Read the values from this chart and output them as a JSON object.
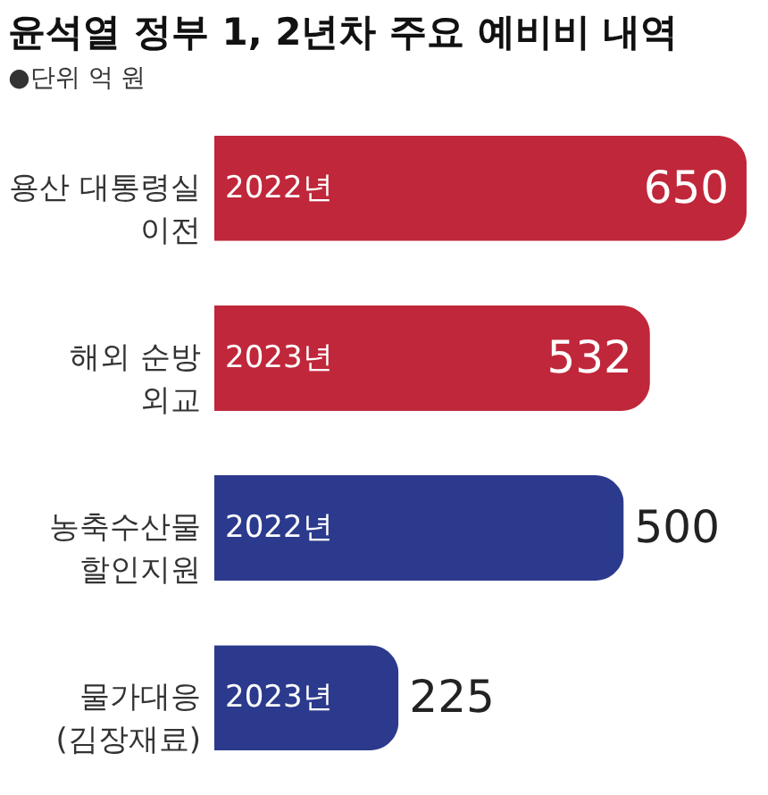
{
  "chart_data": {
    "type": "bar",
    "orientation": "horizontal",
    "title": "윤석열 정부 1, 2년차 주요 예비비 내역",
    "subtitle": "●단위 억 원",
    "categories": [
      "용산 대통령실\n이전",
      "해외 순방\n외교",
      "농축수산물\n할인지원",
      "물가대응\n(김장재료)"
    ],
    "values": [
      650,
      532,
      500,
      225
    ],
    "colors": [
      "#c0273a",
      "#c0273a",
      "#2b3a8c",
      "#2b3a8c"
    ],
    "data_labels": true,
    "annotations": [
      "2022년",
      "2023년",
      "2022년",
      "2023년"
    ]
  }
}
